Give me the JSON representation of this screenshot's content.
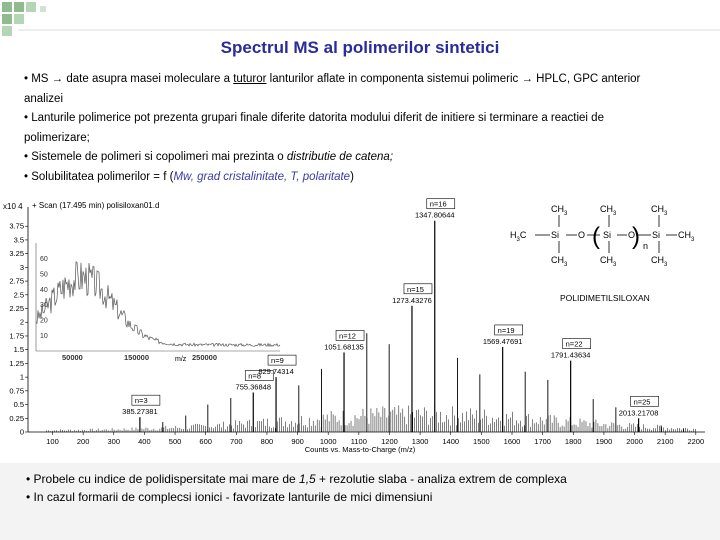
{
  "slide": {
    "title": "Spectrul MS al polimerilor sintetici",
    "bullets": [
      {
        "a": "•  MS → date asupra masei moleculare a ",
        "u": "tuturor",
        "b": " lanturilor aflate in componenta sistemui polimeric → HPLC, GPC anterior",
        "c": "analizei"
      },
      {
        "a": "•  Lanturile polimerice pot prezenta grupari finale diferite datorita modului diferit de initiere si terminare a reactiei de",
        "c": "polimerizare;"
      },
      {
        "a": "•  Sistemele de polimeri si copolimeri mai prezinta o ",
        "i": "distributie de catena;"
      },
      {
        "a": "•  Solubilitatea polimerilor = f (",
        "i": "Mw, grad cristalinitate, T, polaritate",
        "b": ")"
      }
    ],
    "footer": [
      {
        "a": "• Probele cu indice de polidispersitate mai mare de ",
        "i": "1,5",
        "b": " + rezolutie slaba -  analiza extrem de complexa"
      },
      {
        "a": "• In cazul formarii de complecsi ionici - favorizate lanturile de mici dimensiuni"
      }
    ]
  },
  "colors": {
    "title": "#2b2b9a",
    "deco": "#8fbc8f",
    "spectrum": "#000000",
    "inset": "#555555"
  },
  "chart_data": {
    "type": "bar",
    "scan_label": "+ Scan (17.495 min) polisiloxan01.d",
    "scale_label": "x10 4",
    "xlabel": "Counts vs. Mass-to-Charge (m/z)",
    "xlim": [
      20,
      2230
    ],
    "ylim": [
      0,
      4.1
    ],
    "xticks": [
      "100",
      "200",
      "300",
      "400",
      "500",
      "600",
      "700",
      "800",
      "900",
      "1000",
      "1100",
      "1200",
      "1300",
      "1400",
      "1500",
      "1600",
      "1700",
      "1800",
      "1900",
      "2000",
      "2100",
      "2200"
    ],
    "yticks": [
      "0",
      "0.25",
      "0.5",
      "0.75",
      "1",
      "1.25",
      "1.5",
      "1.75",
      "2",
      "2.25",
      "2.5",
      "2.75",
      "3",
      "3.25",
      "3.5",
      "3.75"
    ],
    "peaks": [
      {
        "mz": 385.27381,
        "y": 0.27,
        "n": "n=3",
        "label": "385.27381"
      },
      {
        "mz": 755.36848,
        "y": 0.72,
        "n": "n=8",
        "label": "755.36848"
      },
      {
        "mz": 829.74314,
        "y": 1.0,
        "n": "n=9",
        "label": "829.74314"
      },
      {
        "mz": 1051.68135,
        "y": 1.45,
        "n": "n=12",
        "label": "1051.68135"
      },
      {
        "mz": 1273.43276,
        "y": 2.3,
        "n": "n=15",
        "label": "1273.43276"
      },
      {
        "mz": 1347.80644,
        "y": 3.85,
        "n": "n=16",
        "label": "1347.80644"
      },
      {
        "mz": 1569.47691,
        "y": 1.55,
        "n": "n=19",
        "label": "1569.47691"
      },
      {
        "mz": 1791.43634,
        "y": 1.3,
        "n": "n=22",
        "label": "1791.43634"
      },
      {
        "mz": 2013.21708,
        "y": 0.25,
        "n": "n=25",
        "label": "2013.21708"
      }
    ],
    "minor_peaks": [
      {
        "mz": 460,
        "y": 0.18
      },
      {
        "mz": 535,
        "y": 0.3
      },
      {
        "mz": 607,
        "y": 0.5
      },
      {
        "mz": 682,
        "y": 0.62
      },
      {
        "mz": 904,
        "y": 0.85
      },
      {
        "mz": 978,
        "y": 1.15
      },
      {
        "mz": 1126,
        "y": 1.8
      },
      {
        "mz": 1199,
        "y": 1.6
      },
      {
        "mz": 1422,
        "y": 1.35
      },
      {
        "mz": 1495,
        "y": 1.05
      },
      {
        "mz": 1643,
        "y": 1.1
      },
      {
        "mz": 1717,
        "y": 0.95
      },
      {
        "mz": 1865,
        "y": 0.6
      },
      {
        "mz": 1939,
        "y": 0.45
      },
      {
        "mz": 2087,
        "y": 0.12
      },
      {
        "mz": 2160,
        "y": 0.06
      }
    ],
    "inset": {
      "yticks": [
        "10",
        "20",
        "30",
        "40",
        "50",
        "60"
      ],
      "xticks": [
        "50000",
        "150000",
        "250000"
      ],
      "xlabel": "m/z"
    },
    "structure": {
      "ch3": "CH",
      "sub": "3",
      "h3c": "H",
      "h3c_sub": "3",
      "h3c_c": "C",
      "si": "Si",
      "o": "O",
      "n": "n",
      "name": "POLIDIMETILSILOXAN"
    }
  }
}
